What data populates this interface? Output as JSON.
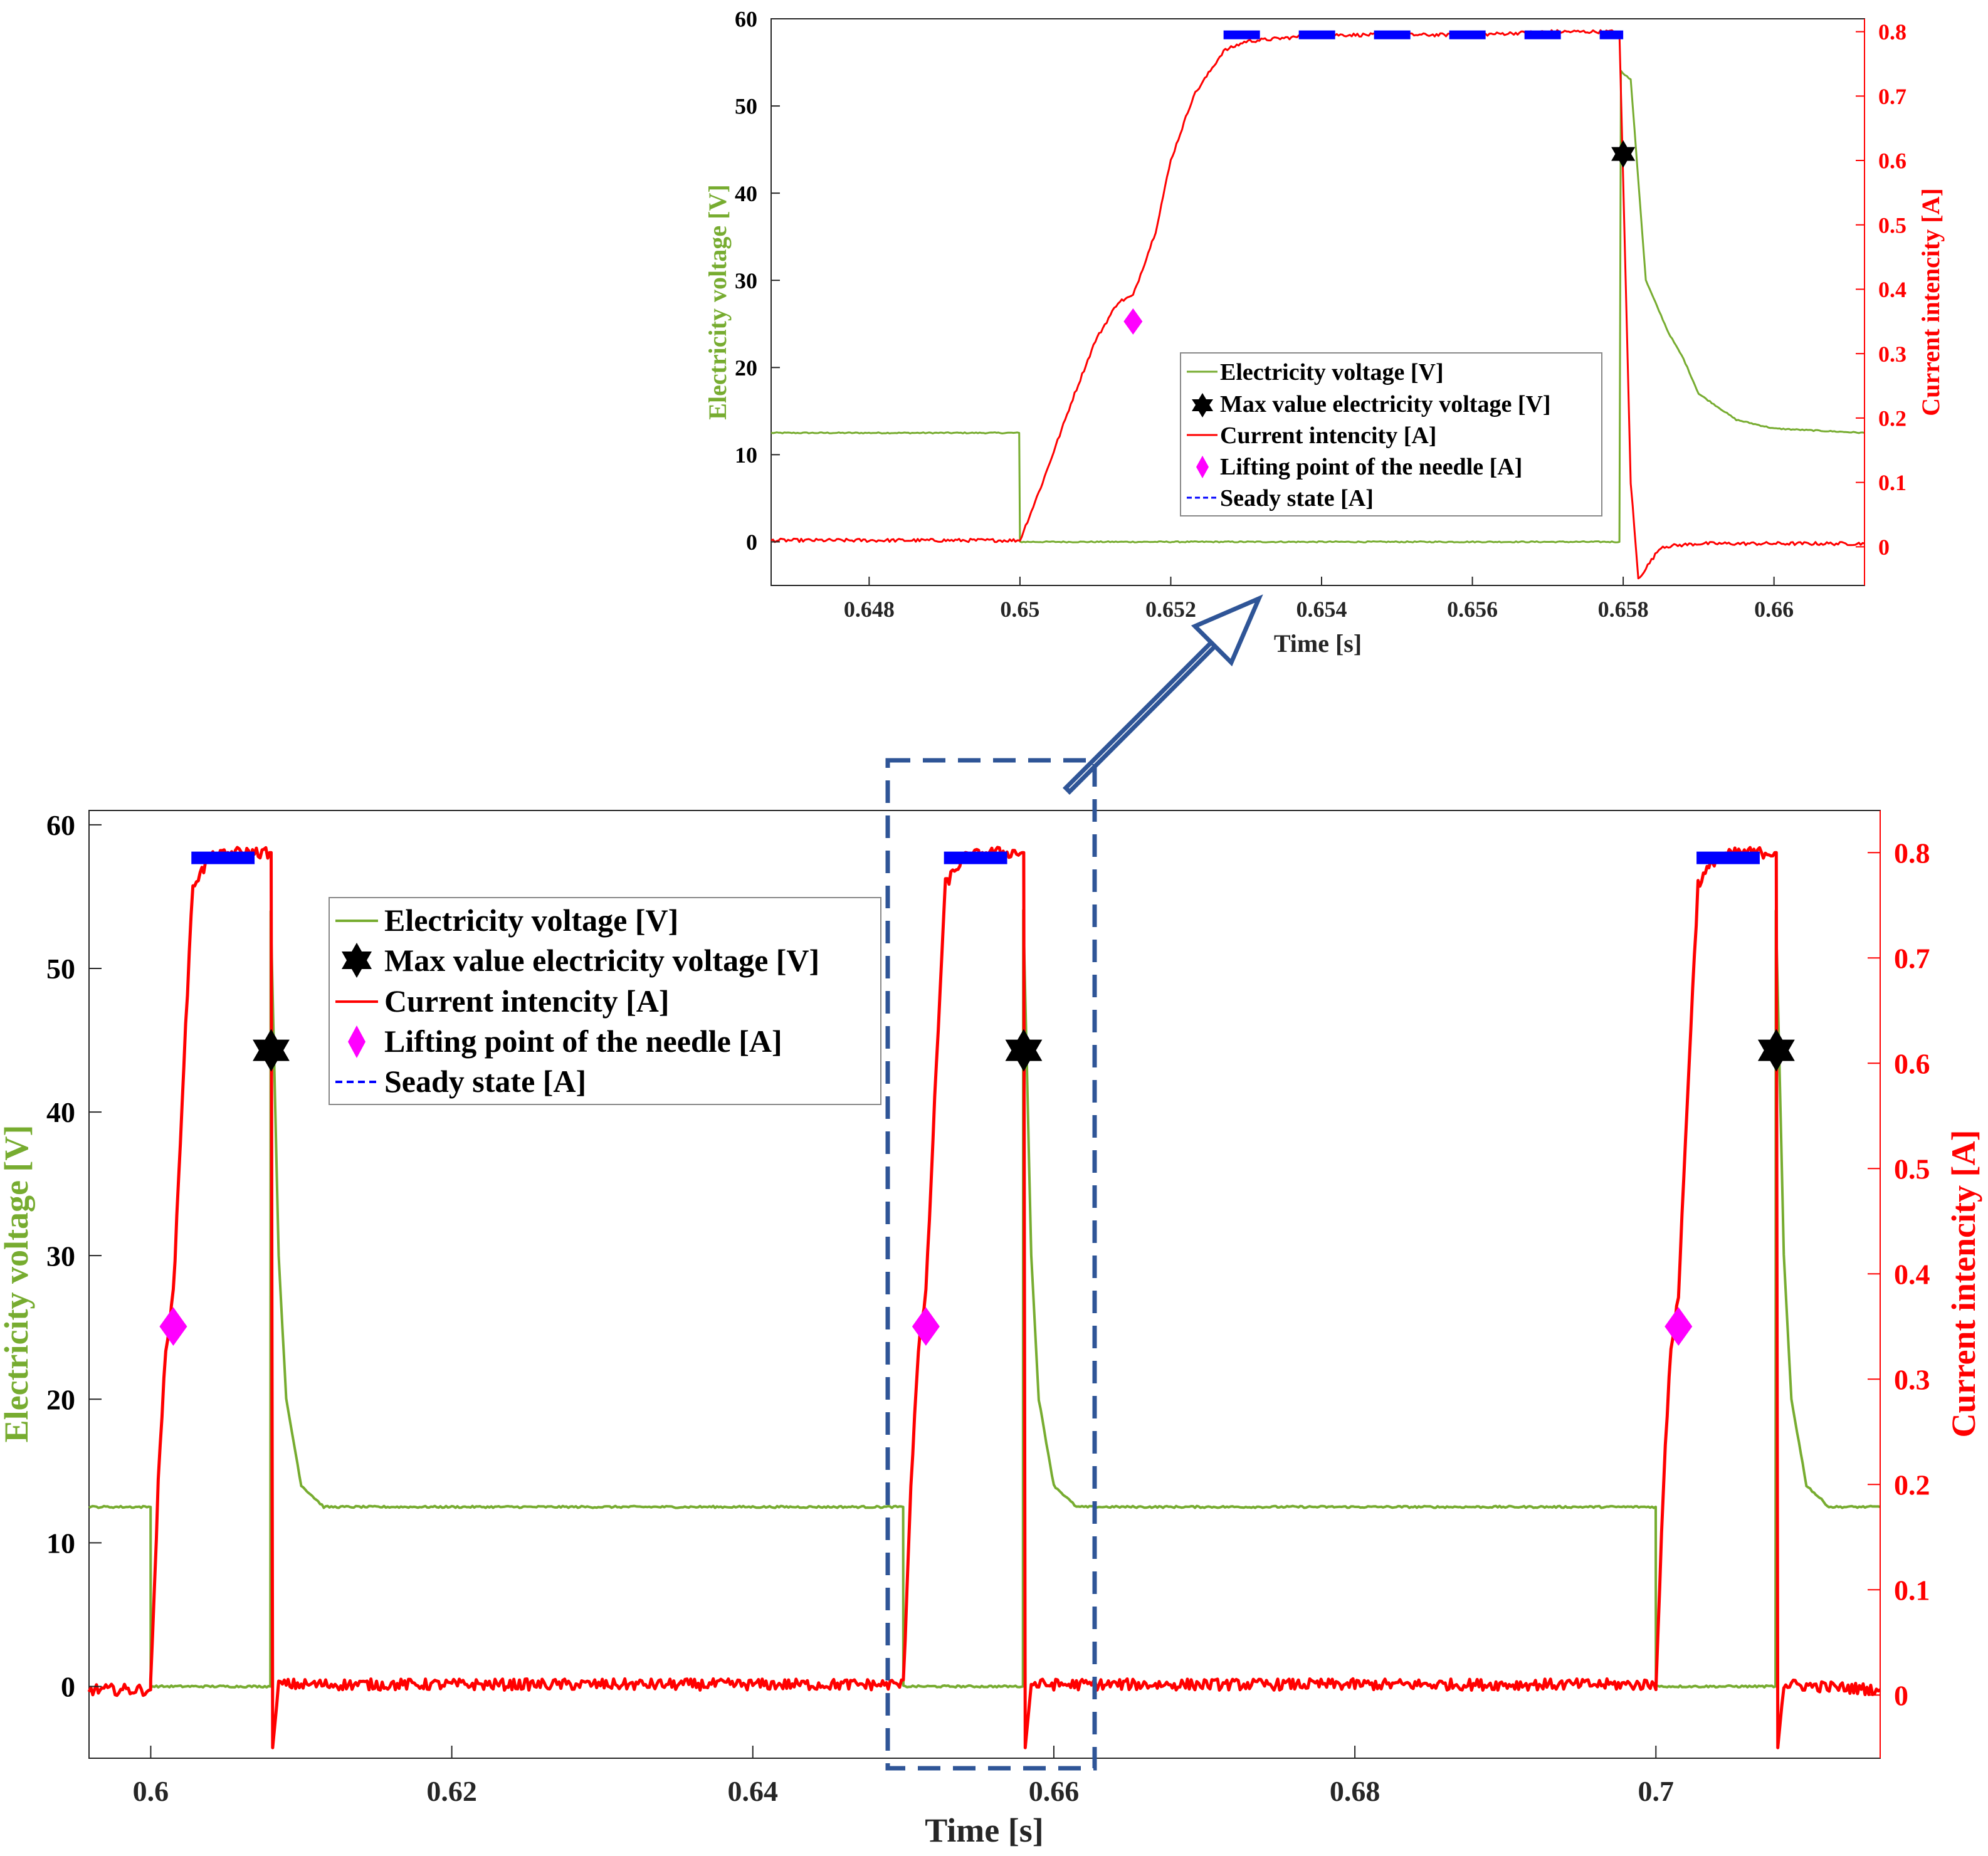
{
  "colors": {
    "voltage": "#77ac30",
    "current": "#ff0000",
    "max_marker": "#000000",
    "lift_marker": "#ff00ff",
    "steady": "#0000ff",
    "highlight": "#2f5597"
  },
  "chart_data": [
    {
      "id": "zoom",
      "type": "line",
      "xlabel": "Time [s]",
      "ylabel_left": "Electricity voltage [V]",
      "ylabel_right": "Current intencity [A]",
      "xlim": [
        0.6467,
        0.6612
      ],
      "ylim_left": [
        -5,
        60
      ],
      "ylim_right": [
        -0.06,
        0.82
      ],
      "xticks": [
        0.648,
        0.65,
        0.652,
        0.654,
        0.656,
        0.658,
        0.66
      ],
      "xtick_labels": [
        "0.648",
        "0.65",
        "0.652",
        "0.654",
        "0.656",
        "0.658",
        "0.66"
      ],
      "yticks_left": [
        0,
        10,
        20,
        30,
        40,
        50,
        60
      ],
      "yticks_right": [
        0,
        0.1,
        0.2,
        0.3,
        0.4,
        0.5,
        0.6,
        0.7,
        0.8
      ],
      "ytick_right_labels": [
        "0",
        "0.1",
        "0.2",
        "0.3",
        "0.4",
        "0.5",
        "0.6",
        "0.7",
        "0.8"
      ],
      "legend": {
        "position": "center",
        "entries": [
          "Electricity voltage [V]",
          "Max value electricity voltage [V]",
          "Current intencity [A]",
          "Lifting point of the needle [A]",
          "Seady state [A]"
        ]
      },
      "series": [
        {
          "name": "Electricity voltage [V]",
          "axis": "left",
          "x": [
            0.6467,
            0.64999,
            0.65,
            0.65795,
            0.65797,
            0.6581,
            0.6583,
            0.6586,
            0.6588,
            0.659,
            0.6595,
            0.66,
            0.6612
          ],
          "y": [
            12.5,
            12.5,
            0,
            0,
            54,
            53,
            30,
            24,
            21,
            17,
            14,
            13,
            12.5
          ]
        },
        {
          "name": "Current intencity [A]",
          "axis": "right",
          "x": [
            0.6467,
            0.64999,
            0.65,
            0.6503,
            0.6507,
            0.651,
            0.6513,
            0.6515,
            0.6518,
            0.652,
            0.6523,
            0.6527,
            0.653,
            0.6535,
            0.654,
            0.655,
            0.656,
            0.657,
            0.6579,
            0.65795,
            0.6581,
            0.6582,
            0.6585,
            0.659,
            0.66,
            0.6612
          ],
          "y": [
            0.01,
            0.01,
            0.01,
            0.1,
            0.23,
            0.32,
            0.38,
            0.39,
            0.49,
            0.6,
            0.7,
            0.77,
            0.785,
            0.79,
            0.795,
            0.795,
            0.795,
            0.8,
            0.8,
            0.8,
            0.1,
            -0.05,
            0.0,
            0.005,
            0.005,
            0.005
          ]
        },
        {
          "name": "Max value electricity voltage [V]",
          "axis": "left",
          "marker": "hexagram",
          "x": [
            0.658
          ],
          "y": [
            44.5
          ]
        },
        {
          "name": "Lifting point of the needle [A]",
          "axis": "right",
          "marker": "diamond",
          "x": [
            0.6515
          ],
          "y": [
            0.35
          ]
        },
        {
          "name": "Seady state [A]",
          "axis": "right",
          "style": "dashed",
          "x": [
            0.6527,
            0.658
          ],
          "y": [
            0.795,
            0.795
          ]
        }
      ]
    },
    {
      "id": "main",
      "type": "line",
      "xlabel": "Time [s]",
      "ylabel_left": "Electricity voltage [V]",
      "ylabel_right": "Current intencity [A]",
      "xlim": [
        0.5959,
        0.7149
      ],
      "ylim_left": [
        -5,
        61
      ],
      "ylim_right": [
        -0.06,
        0.84
      ],
      "xticks": [
        0.6,
        0.62,
        0.64,
        0.66,
        0.68,
        0.7
      ],
      "xtick_labels": [
        "0.6",
        "0.62",
        "0.64",
        "0.66",
        "0.68",
        "0.7"
      ],
      "yticks_left": [
        0,
        10,
        20,
        30,
        40,
        50,
        60
      ],
      "yticks_right": [
        0,
        0.1,
        0.2,
        0.3,
        0.4,
        0.5,
        0.6,
        0.7,
        0.8
      ],
      "ytick_right_labels": [
        "0",
        "0.1",
        "0.2",
        "0.3",
        "0.4",
        "0.5",
        "0.6",
        "0.7",
        "0.8"
      ],
      "legend": {
        "position": "top-left",
        "entries": [
          "Electricity voltage [V]",
          "Max value electricity voltage [V]",
          "Current intencity [A]",
          "Lifting point of the needle [A]",
          "Seady state [A]"
        ]
      },
      "series": [
        {
          "name": "Electricity voltage [V]",
          "axis": "left",
          "x": [
            0.5959,
            0.59999,
            0.6,
            0.60795,
            0.60797,
            0.6085,
            0.609,
            0.61,
            0.6115,
            0.64999,
            0.65,
            0.65795,
            0.65797,
            0.6585,
            0.659,
            0.66,
            0.6615,
            0.69999,
            0.7,
            0.70795,
            0.70797,
            0.7085,
            0.709,
            0.71,
            0.7115,
            0.7149
          ],
          "y": [
            12.5,
            12.5,
            0,
            0,
            54,
            30,
            20,
            14,
            12.5,
            12.5,
            0,
            0,
            54,
            30,
            20,
            14,
            12.5,
            12.5,
            0,
            0,
            54,
            30,
            20,
            14,
            12.5,
            12.5
          ]
        },
        {
          "name": "Current intencity [A]",
          "axis": "right",
          "x": [
            0.5959,
            0.59999,
            0.6,
            0.6005,
            0.601,
            0.6015,
            0.6022,
            0.6028,
            0.604,
            0.6055,
            0.6079,
            0.608,
            0.6081,
            0.6085,
            0.6495,
            0.65,
            0.6505,
            0.651,
            0.6515,
            0.6522,
            0.6528,
            0.654,
            0.6555,
            0.6579,
            0.658,
            0.6581,
            0.6585,
            0.6995,
            0.7,
            0.7005,
            0.701,
            0.7015,
            0.7022,
            0.7028,
            0.704,
            0.7055,
            0.7079,
            0.708,
            0.7081,
            0.7085,
            0.7149
          ],
          "y": [
            0.005,
            0.005,
            0.01,
            0.2,
            0.33,
            0.38,
            0.6,
            0.77,
            0.795,
            0.8,
            0.8,
            0.8,
            -0.05,
            0.01,
            0.01,
            0.01,
            0.2,
            0.33,
            0.38,
            0.6,
            0.77,
            0.795,
            0.8,
            0.8,
            0.8,
            -0.05,
            0.01,
            0.01,
            0.01,
            0.2,
            0.33,
            0.38,
            0.6,
            0.77,
            0.795,
            0.8,
            0.8,
            0.8,
            -0.05,
            0.01,
            0.005
          ]
        },
        {
          "name": "Max value electricity voltage [V]",
          "axis": "left",
          "marker": "hexagram",
          "x": [
            0.608,
            0.658,
            0.708
          ],
          "y": [
            44.3,
            44.3,
            44.3
          ]
        },
        {
          "name": "Lifting point of the needle [A]",
          "axis": "right",
          "marker": "diamond",
          "x": [
            0.6015,
            0.6515,
            0.7015
          ],
          "y": [
            0.35,
            0.35,
            0.35
          ]
        },
        {
          "name": "Seady state [A]",
          "axis": "right",
          "style": "dashed",
          "x": [
            0.6027,
            0.6069,
            0.6527,
            0.6569,
            0.7027,
            0.7069
          ],
          "y": [
            0.795,
            0.795,
            0.795,
            0.795,
            0.795,
            0.795
          ]
        }
      ]
    }
  ]
}
